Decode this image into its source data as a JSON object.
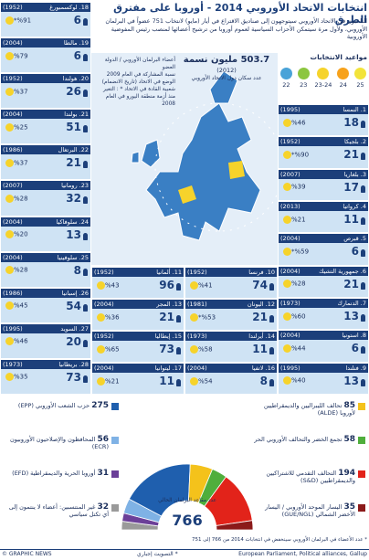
{
  "header": {
    "title": "انتخابات الاتحاد الأوروبي 2014 - أوروبا على مفترق الطرق",
    "subtitle": "الناخبون في الاتحاد الأوروبي سيتوجهون إلى صناديق الاقتراع في أيار (مايو) لانتخاب 751 عضواً في البرلمان الأوروبي، ولأول مرة سيتمكن الأحزاب السياسية لعموم أوروبا من ترشيح أعضائها لمنصب رئيس المفوضية الأوروبية"
  },
  "election_dates": {
    "title": "مواعيد الانتخابات",
    "items": [
      {
        "label": "22",
        "color": "#4aa3d8"
      },
      {
        "label": "23",
        "color": "#8cc63f"
      },
      {
        "label": "23-24",
        "color": "#f6d32b"
      },
      {
        "label": "24",
        "color": "#f7a21b"
      },
      {
        "label": "25",
        "color": "#f2e33a"
      }
    ]
  },
  "map": {
    "population": "503.7 مليون نسمة",
    "population_year": "(2012)",
    "population_label": "عدد سكان دول الاتحاد الأوروبي",
    "key_seats": "أعضاء البرلمان الأوروبي / الدولة العضو",
    "key_turnout": "نسبة المشاركة في العام 2009",
    "key_joined": "الوضع في الاتحاد (تاريخ الانضمام)",
    "key_trust": "شعبية القادة في الاتحاد * : التغير منذ أزمة منطقة اليورو في العام 2008"
  },
  "countries": [
    {
      "label": "1. النمسا",
      "joined": "(1995)",
      "seats": 18,
      "turnout": "%46"
    },
    {
      "label": "2. بلجيكا",
      "joined": "(1952)",
      "seats": 21,
      "turnout": "%90*"
    },
    {
      "label": "3. بلغاريا",
      "joined": "(2007)",
      "seats": 17,
      "turnout": "%39"
    },
    {
      "label": "4. كرواتيا",
      "joined": "(2013)",
      "seats": 11,
      "turnout": "%21"
    },
    {
      "label": "5. قبرص",
      "joined": "(2004)",
      "seats": 6,
      "turnout": "%59*"
    },
    {
      "label": "6. جمهورية التشيك",
      "joined": "(2004)",
      "seats": 21,
      "turnout": "%28"
    },
    {
      "label": "7. الدنمارك",
      "joined": "(1973)",
      "seats": 13,
      "turnout": "%60"
    },
    {
      "label": "8. استونيا",
      "joined": "(2004)",
      "seats": 6,
      "turnout": "%44"
    },
    {
      "label": "9. فنلندا",
      "joined": "(1995)",
      "seats": 13,
      "turnout": "%40"
    },
    {
      "label": "10. فرنسا",
      "joined": "(1952)",
      "seats": 74,
      "turnout": "%41"
    },
    {
      "label": "11. ألمانيا",
      "joined": "(1952)",
      "seats": 96,
      "turnout": "%43"
    },
    {
      "label": "12. اليونان",
      "joined": "(1981)",
      "seats": 21,
      "turnout": "%53*"
    },
    {
      "label": "13. المجر",
      "joined": "(2004)",
      "seats": 21,
      "turnout": "%36"
    },
    {
      "label": "14. أيرلندا",
      "joined": "(1973)",
      "seats": 11,
      "turnout": "%58"
    },
    {
      "label": "15. إيطاليا",
      "joined": "(1952)",
      "seats": 73,
      "turnout": "%65"
    },
    {
      "label": "16. لاتفيا",
      "joined": "(2004)",
      "seats": 8,
      "turnout": "%54"
    },
    {
      "label": "17. ليتوانيا",
      "joined": "(2004)",
      "seats": 11,
      "turnout": "%21"
    },
    {
      "label": "18. لوكسمبورغ",
      "joined": "(1952)",
      "seats": 6,
      "turnout": "%91*"
    },
    {
      "label": "19. مالطا",
      "joined": "(2004)",
      "seats": 6,
      "turnout": "%79"
    },
    {
      "label": "20. هولندا",
      "joined": "(1952)",
      "seats": 26,
      "turnout": "%37"
    },
    {
      "label": "21. بولندا",
      "joined": "(2004)",
      "seats": 51,
      "turnout": "%25"
    },
    {
      "label": "22. البرتغال",
      "joined": "(1986)",
      "seats": 21,
      "turnout": "%37"
    },
    {
      "label": "23. رومانيا",
      "joined": "(2007)",
      "seats": 32,
      "turnout": "%28"
    },
    {
      "label": "24. سلوفاكيا",
      "joined": "(2004)",
      "seats": 13,
      "turnout": "%20"
    },
    {
      "label": "25. سلوفينيا",
      "joined": "(2004)",
      "seats": 8,
      "turnout": "%28"
    },
    {
      "label": "26. إسبانيا",
      "joined": "(1986)",
      "seats": 54,
      "turnout": "%45"
    },
    {
      "label": "27. السويد",
      "joined": "(1995)",
      "seats": 20,
      "turnout": "%46"
    },
    {
      "label": "28. بريطانيا",
      "joined": "(1973)",
      "seats": 73,
      "turnout": "%35"
    }
  ],
  "parliament": {
    "total": 766,
    "total_label": "عدد مقاعد البرلمان الحالي",
    "groups": [
      {
        "name": "غير المنتسبين: أعضاء لا ينتمون إلى أي تكتل سياسي",
        "seats": 32,
        "color": "#9a9a9a"
      },
      {
        "name": "أوروبا الحرية والديمقراطية (EFD)",
        "seats": 31,
        "color": "#6b3f98"
      },
      {
        "name": "المحافظون والإصلاحيون الأوروبيون (ECR)",
        "seats": 56,
        "color": "#7fb2e5"
      },
      {
        "name": "حزب الشعب الأوروبي (EPP)",
        "seats": 275,
        "color": "#1f5fae"
      },
      {
        "name": "تحالف الليبراليين والديمقراطيين لأوروبا (ALDE)",
        "seats": 85,
        "color": "#f4c21b"
      },
      {
        "name": "تجمع الخضر والتحالف الأوروبي الحر",
        "seats": 58,
        "color": "#4fae3c"
      },
      {
        "name": "التحالف التقدمي للاشتراكيين والديمقراطيين (S&D)",
        "seats": 194,
        "color": "#e2231a"
      },
      {
        "name": "اليسار الموحد الأوروبي / اليسار الأخضر الشمالي (GUE/NGL)",
        "seats": 35,
        "color": "#8b1a1a"
      }
    ]
  },
  "footer": {
    "note": "* عدد الأعضاء في البرلمان الأوروبي سينخفض في انتخابات 2014 من 766 إلى 751",
    "compulsory": "* التصويت إجباري",
    "credit": "© GRAPHIC NEWS",
    "source": "European Parliament, Political alliances, Gallup"
  }
}
